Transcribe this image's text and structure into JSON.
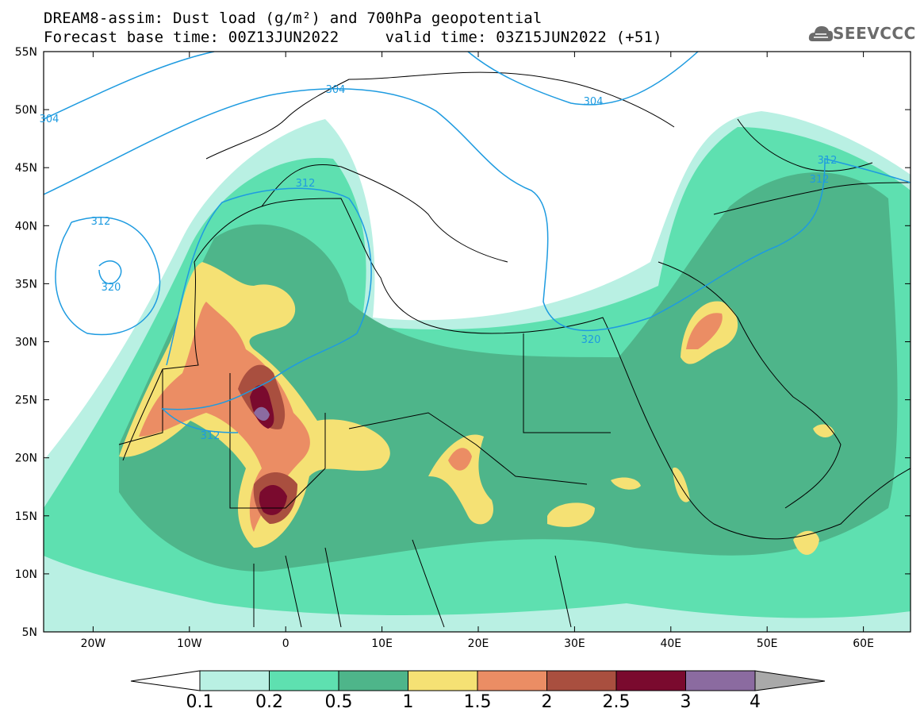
{
  "title": {
    "line1": "DREAM8-assim: Dust load (g/m²) and 700hPa geopotential",
    "line2": "Forecast base time: 00Z13JUN2022     valid time: 03Z15JUN2022 (+51)"
  },
  "logo": {
    "text": "SEEVCCC",
    "icon": "cloud-icon"
  },
  "axes": {
    "lat_labels": [
      "55N",
      "50N",
      "45N",
      "40N",
      "35N",
      "30N",
      "25N",
      "20N",
      "15N",
      "10N",
      "5N"
    ],
    "lon_labels": [
      "20W",
      "10W",
      "0",
      "10E",
      "20E",
      "30E",
      "40E",
      "50E",
      "60E"
    ]
  },
  "contour_labels": [
    "304",
    "312",
    "320",
    "312",
    "304",
    "304",
    "312",
    "320",
    "312",
    "312"
  ],
  "colorbar": {
    "labels": [
      "0.1",
      "0.2",
      "0.5",
      "1",
      "1.5",
      "2",
      "2.5",
      "3",
      "4"
    ],
    "colors": [
      "#b9f0e3",
      "#5ee0b0",
      "#4eb58a",
      "#f5e174",
      "#eb8d64",
      "#a94f3f",
      "#7a0a2e",
      "#8b6ba0",
      "#a9a9a9"
    ]
  },
  "map_colors": {
    "geopotential_line": "#1e9be0",
    "land_outline": "#000000"
  }
}
